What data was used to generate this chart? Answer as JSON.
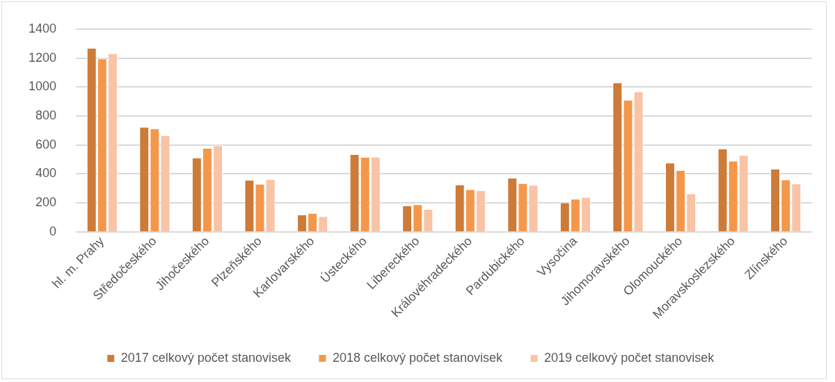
{
  "chart_data": {
    "type": "bar",
    "categories": [
      "hl. m. Prahy",
      "Středočeského",
      "Jihočeského",
      "Plzeňského",
      "Karlovarského",
      "Ústeckého",
      "Libereckého",
      "Královéhradeckého",
      "Pardubického",
      "Vysočina",
      "Jihomoravského",
      "Olomouckého",
      "Moravskoslezského",
      "Zlínského"
    ],
    "series": [
      {
        "name": "2017 celkový počet stanovisek",
        "color": "#cd7b38",
        "values": [
          1270,
          725,
          512,
          359,
          120,
          536,
          183,
          327,
          373,
          204,
          1031,
          478,
          575,
          436
        ]
      },
      {
        "name": "2018 celkový počet stanovisek",
        "color": "#f5974a",
        "values": [
          1196,
          714,
          580,
          332,
          130,
          517,
          190,
          294,
          336,
          229,
          911,
          426,
          491,
          362
        ]
      },
      {
        "name": "2019 celkový počet stanovisek",
        "color": "#f9c3a5",
        "values": [
          1233,
          667,
          596,
          364,
          109,
          519,
          158,
          287,
          324,
          241,
          969,
          266,
          531,
          334
        ]
      }
    ],
    "ylim": [
      0,
      1400
    ],
    "yticks": [
      0,
      200,
      400,
      600,
      800,
      1000,
      1200,
      1400
    ],
    "grid": "y",
    "legend": "bottom"
  }
}
